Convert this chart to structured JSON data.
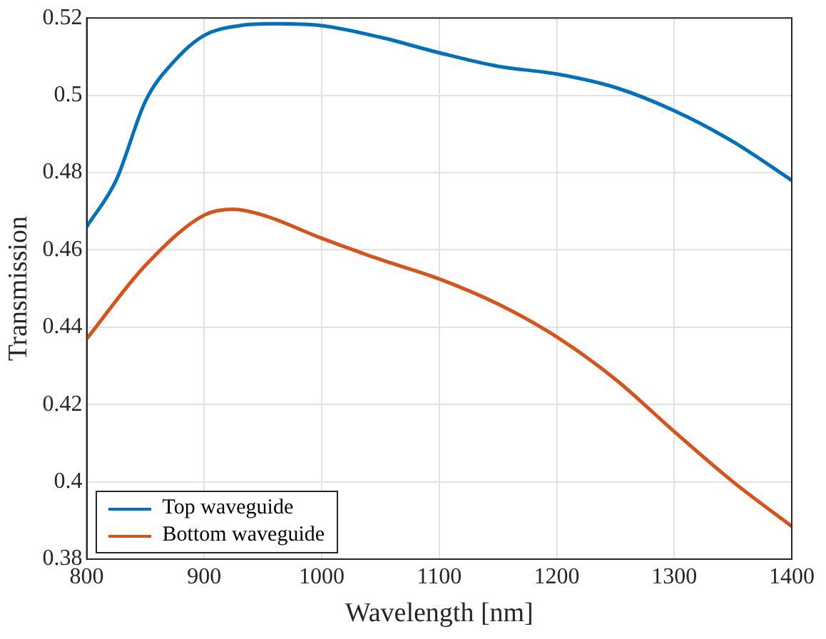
{
  "chart_data": {
    "type": "line",
    "xlabel": "Wavelength [nm]",
    "ylabel": "Transmission",
    "xlim": [
      800,
      1400
    ],
    "xticks": [
      800,
      900,
      1000,
      1100,
      1200,
      1300,
      1400
    ],
    "ylim": [
      0.38,
      0.52
    ],
    "yticks": [
      0.38,
      0.4,
      0.42,
      0.44,
      0.46,
      0.48,
      0.5,
      0.52
    ],
    "grid": true,
    "legend": "bottom left",
    "line_style": "solid",
    "marker": "none",
    "x": [
      800,
      825,
      850,
      875,
      900,
      930,
      960,
      1000,
      1050,
      1100,
      1150,
      1200,
      1250,
      1300,
      1350,
      1400
    ],
    "series": [
      {
        "name": "Top waveguide",
        "color": "#0072bd",
        "values": [
          0.466,
          0.478,
          0.4985,
          0.509,
          0.5155,
          0.518,
          0.5185,
          0.518,
          0.515,
          0.511,
          0.5075,
          0.5055,
          0.502,
          0.496,
          0.488,
          0.478
        ]
      },
      {
        "name": "Bottom waveguide",
        "color": "#d95319",
        "x": [
          800,
          850,
          900,
          925,
          950,
          1000,
          1050,
          1100,
          1150,
          1200,
          1250,
          1300,
          1350,
          1400
        ],
        "values": [
          0.437,
          0.456,
          0.469,
          0.4705,
          0.469,
          0.463,
          0.4575,
          0.4525,
          0.446,
          0.4375,
          0.4265,
          0.413,
          0.4,
          0.3885
        ]
      }
    ]
  }
}
